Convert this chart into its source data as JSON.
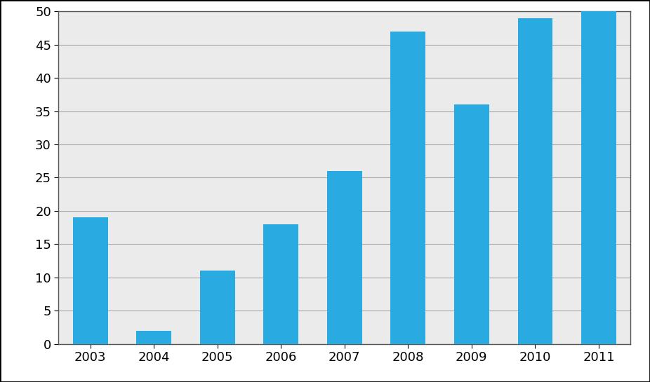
{
  "categories": [
    "2003",
    "2004",
    "2005",
    "2006",
    "2007",
    "2008",
    "2009",
    "2010",
    "2011"
  ],
  "values": [
    19,
    2,
    11,
    18,
    26,
    47,
    36,
    49,
    50
  ],
  "bar_color": "#29ABE2",
  "bar_edge_color": "#29ABE2",
  "ylim": [
    0,
    50
  ],
  "yticks": [
    0,
    5,
    10,
    15,
    20,
    25,
    30,
    35,
    40,
    45,
    50
  ],
  "plot_bg_color": "#EBEBEB",
  "fig_bg_color": "#FFFFFF",
  "grid_color": "#AAAAAA",
  "spine_color": "#555555",
  "tick_label_fontsize": 13,
  "bar_width": 0.55
}
